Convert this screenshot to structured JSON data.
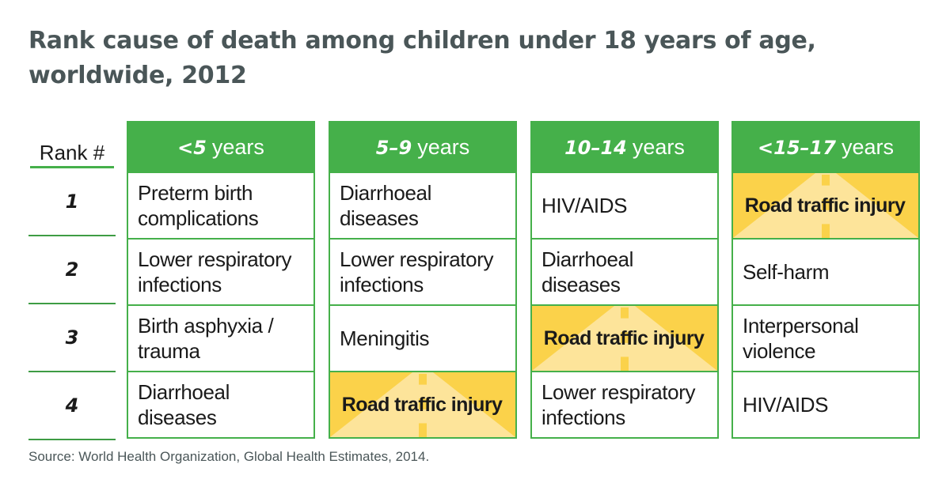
{
  "title_lines": [
    "Rank cause of death among children under 18 years of age,",
    "worldwide, 2012"
  ],
  "rank_header": "Rank #",
  "source": "Source: World Health Organization, Global Health Estimates, 2014.",
  "colors": {
    "green": "#45b04a",
    "highlight": "#fbd24a",
    "title": "#4a5658"
  },
  "chart_data": {
    "type": "table",
    "title": "Rank cause of death among children under 18 years of age, worldwide, 2012",
    "ranks": [
      "1",
      "2",
      "3",
      "4"
    ],
    "columns": [
      {
        "range": "<5",
        "unit": "years",
        "causes": [
          "Preterm birth complications",
          "Lower respiratory infections",
          "Birth asphyxia / trauma",
          "Diarrhoeal diseases"
        ]
      },
      {
        "range": "5–9",
        "unit": "years",
        "causes": [
          "Diarrhoeal diseases",
          "Lower respiratory infections",
          "Meningitis",
          "Road traffic injury"
        ]
      },
      {
        "range": "10–14",
        "unit": "years",
        "causes": [
          "HIV/AIDS",
          "Diarrhoeal diseases",
          "Road traffic injury",
          "Lower respiratory infections"
        ]
      },
      {
        "range": "<15–17",
        "unit": "years",
        "causes": [
          "Road traffic injury",
          "Self-harm",
          "Interpersonal violence",
          "HIV/AIDS"
        ]
      }
    ],
    "highlighted_cause": "Road traffic injury"
  }
}
